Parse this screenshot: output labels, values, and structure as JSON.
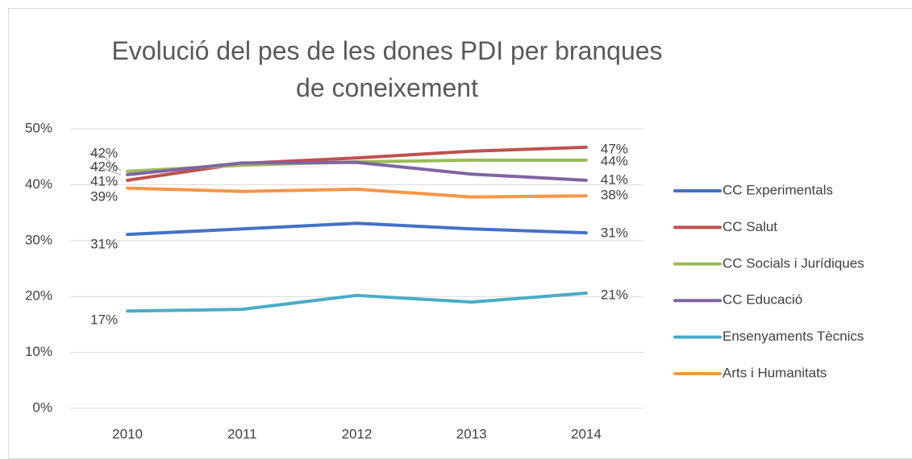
{
  "chart_data": {
    "type": "line",
    "title": "Evolució del pes de les dones PDI per branques de coneixement",
    "categories": [
      "2010",
      "2011",
      "2012",
      "2013",
      "2014"
    ],
    "ylim": [
      0,
      50
    ],
    "yticks": [
      {
        "value": 0,
        "label": "0%"
      },
      {
        "value": 10,
        "label": "10%"
      },
      {
        "value": 20,
        "label": "20%"
      },
      {
        "value": 30,
        "label": "30%"
      },
      {
        "value": 40,
        "label": "40%"
      },
      {
        "value": 50,
        "label": "50%"
      }
    ],
    "grid": true,
    "legend": "right",
    "series": [
      {
        "name": "CC Experimentals",
        "color": "#4472c4",
        "values": [
          31.1,
          32.1,
          33.1,
          32.1,
          31.4
        ],
        "value_labels": [
          "31%",
          null,
          null,
          null,
          "31%"
        ]
      },
      {
        "name": "CC Salut",
        "color": "#c0504d",
        "values": [
          40.8,
          43.8,
          44.8,
          46.0,
          46.7
        ],
        "value_labels": [
          "41%",
          null,
          null,
          null,
          "47%"
        ]
      },
      {
        "name": "CC Socials i Jurídiques",
        "color": "#9bbb59",
        "values": [
          42.4,
          43.5,
          44.1,
          44.4,
          44.4
        ],
        "value_labels": [
          "42%",
          null,
          null,
          null,
          "44%"
        ]
      },
      {
        "name": "CC Educació",
        "color": "#8064a2",
        "values": [
          41.8,
          43.9,
          44.0,
          41.9,
          40.8
        ],
        "value_labels": [
          "42%",
          null,
          null,
          null,
          "41%"
        ]
      },
      {
        "name": "Ensenyaments Tècnics",
        "color": "#4bacc6",
        "values": [
          17.4,
          17.7,
          20.2,
          19.0,
          20.6
        ],
        "value_labels": [
          "17%",
          null,
          null,
          null,
          "21%"
        ]
      },
      {
        "name": "Arts i Humanitats",
        "color": "#f79646",
        "values": [
          39.4,
          38.8,
          39.2,
          37.8,
          38.0
        ],
        "value_labels": [
          "39%",
          null,
          null,
          null,
          "38%"
        ]
      }
    ]
  }
}
